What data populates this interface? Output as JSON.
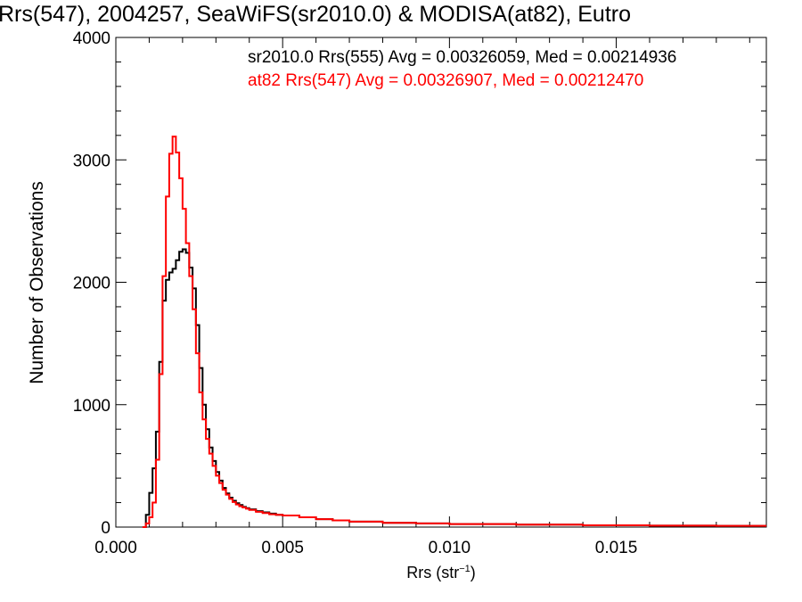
{
  "chart_data": {
    "type": "line",
    "title": "Rrs(547), 2004257, SeaWiFS(sr2010.0) & MODISA(at82), Eutro",
    "xlabel": "Rrs (str",
    "xlabel_sup": "−1",
    "xlabel_end": ")",
    "ylabel": "Number of Observations",
    "xlim": [
      0.0,
      0.0195
    ],
    "ylim": [
      0,
      4000
    ],
    "x_ticks": [
      {
        "value": 0.0,
        "label": "0.000"
      },
      {
        "value": 0.005,
        "label": "0.005"
      },
      {
        "value": 0.01,
        "label": "0.010"
      },
      {
        "value": 0.015,
        "label": "0.015"
      }
    ],
    "y_ticks": [
      {
        "value": 0,
        "label": "0"
      },
      {
        "value": 1000,
        "label": "1000"
      },
      {
        "value": 2000,
        "label": "2000"
      },
      {
        "value": 3000,
        "label": "3000"
      },
      {
        "value": 4000,
        "label": "4000"
      }
    ],
    "grid": false,
    "legend_position": "top-right",
    "series": [
      {
        "name": "sr2010.0 Rrs(555) Avg = 0.00326059, Med = 0.00214936",
        "color": "#000000",
        "x": [
          0.0008,
          0.0009,
          0.001,
          0.0011,
          0.0012,
          0.0013,
          0.0014,
          0.0015,
          0.0016,
          0.0017,
          0.0018,
          0.0019,
          0.002,
          0.0021,
          0.0022,
          0.0023,
          0.0024,
          0.0025,
          0.0026,
          0.0027,
          0.0028,
          0.0029,
          0.003,
          0.0031,
          0.0032,
          0.0033,
          0.0034,
          0.0035,
          0.0036,
          0.0037,
          0.0038,
          0.0039,
          0.004,
          0.0042,
          0.0044,
          0.0046,
          0.0048,
          0.005,
          0.0055,
          0.006,
          0.0065,
          0.007,
          0.008,
          0.009,
          0.01,
          0.012,
          0.014,
          0.016,
          0.018,
          0.0195
        ],
        "y": [
          0,
          100,
          280,
          480,
          780,
          1350,
          1850,
          2020,
          2080,
          2110,
          2180,
          2250,
          2270,
          2240,
          2120,
          1950,
          1650,
          1300,
          1000,
          800,
          650,
          540,
          450,
          380,
          320,
          275,
          240,
          215,
          195,
          180,
          165,
          155,
          145,
          130,
          120,
          110,
          100,
          95,
          80,
          65,
          55,
          45,
          35,
          30,
          25,
          20,
          15,
          12,
          10,
          10
        ]
      },
      {
        "name": "at82 Rrs(547) Avg = 0.00326907, Med = 0.00212470",
        "color": "#ff0000",
        "x": [
          0.0008,
          0.0009,
          0.001,
          0.0011,
          0.0012,
          0.0013,
          0.0014,
          0.0015,
          0.0016,
          0.0017,
          0.0018,
          0.0019,
          0.002,
          0.0021,
          0.0022,
          0.0023,
          0.0024,
          0.0025,
          0.0026,
          0.0027,
          0.0028,
          0.0029,
          0.003,
          0.0031,
          0.0032,
          0.0033,
          0.0034,
          0.0035,
          0.0036,
          0.0037,
          0.0038,
          0.0039,
          0.004,
          0.0042,
          0.0044,
          0.0046,
          0.0048,
          0.005,
          0.0055,
          0.006,
          0.0065,
          0.007,
          0.008,
          0.009,
          0.01,
          0.012,
          0.014,
          0.016,
          0.018,
          0.0195
        ],
        "y": [
          0,
          30,
          80,
          200,
          550,
          1250,
          2050,
          2700,
          3050,
          3190,
          3060,
          2850,
          2600,
          2320,
          2050,
          1780,
          1420,
          1100,
          880,
          720,
          600,
          500,
          420,
          360,
          305,
          265,
          230,
          205,
          185,
          170,
          160,
          150,
          140,
          125,
          115,
          105,
          100,
          95,
          80,
          65,
          55,
          45,
          35,
          30,
          25,
          20,
          15,
          12,
          10,
          10
        ]
      }
    ]
  }
}
